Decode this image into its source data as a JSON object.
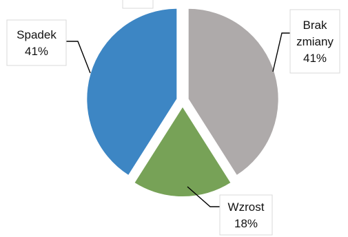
{
  "chart_data": {
    "type": "pie",
    "title": "",
    "slices": [
      {
        "label": "Brak zmiany",
        "label_lines": [
          "Brak",
          "zmiany",
          "41%"
        ],
        "value": 41,
        "percent_text": "41%",
        "color": "#aeaaaa"
      },
      {
        "label": "Wzrost",
        "label_lines": [
          "Wzrost",
          "18%"
        ],
        "value": 18,
        "percent_text": "18%",
        "color": "#77a257"
      },
      {
        "label": "Spadek",
        "label_lines": [
          "Spadek",
          "41%"
        ],
        "value": 41,
        "percent_text": "41%",
        "color": "#3d86c4"
      }
    ],
    "start_angle_deg": 0,
    "direction": "clockwise",
    "exploded": true,
    "legend": "none"
  }
}
